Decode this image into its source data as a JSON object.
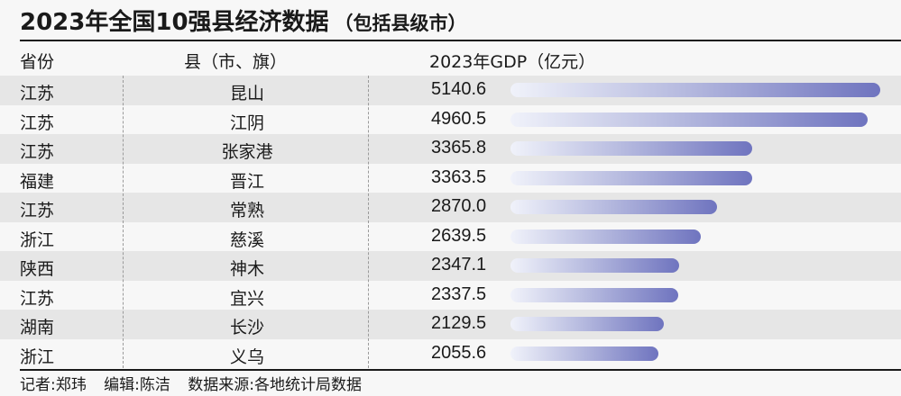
{
  "title": "2023年全国10强县经济数据",
  "subtitle": "（包括县级市）",
  "headers": {
    "province": "省份",
    "county": "县（市、旗）",
    "gdp": "2023年GDP（亿元）"
  },
  "footer": {
    "reporter": "记者:郑玮",
    "editor": "编辑:陈洁",
    "source": "数据来源:各地统计局数据"
  },
  "colors": {
    "bar_start": "#f0f2fa",
    "bar_end": "#6f74bf",
    "row_shade": "#e6e6e6"
  },
  "chart_data": {
    "type": "bar",
    "orientation": "horizontal",
    "title": "2023年全国10强县经济数据",
    "subtitle": "（包括县级市）",
    "xlabel": "2023年GDP（亿元）",
    "max_value": 5140.6,
    "rows": [
      {
        "province": "江苏",
        "county": "昆山",
        "value": 5140.6,
        "label": "5140.6"
      },
      {
        "province": "江苏",
        "county": "江阴",
        "value": 4960.5,
        "label": "4960.5"
      },
      {
        "province": "江苏",
        "county": "张家港",
        "value": 3365.8,
        "label": "3365.8"
      },
      {
        "province": "福建",
        "county": "晋江",
        "value": 3363.5,
        "label": "3363.5"
      },
      {
        "province": "江苏",
        "county": "常熟",
        "value": 2870.0,
        "label": "2870.0"
      },
      {
        "province": "浙江",
        "county": "慈溪",
        "value": 2639.5,
        "label": "2639.5"
      },
      {
        "province": "陕西",
        "county": "神木",
        "value": 2347.1,
        "label": "2347.1"
      },
      {
        "province": "江苏",
        "county": "宜兴",
        "value": 2337.5,
        "label": "2337.5"
      },
      {
        "province": "湖南",
        "county": "长沙",
        "value": 2129.5,
        "label": "2129.5"
      },
      {
        "province": "浙江",
        "county": "义乌",
        "value": 2055.6,
        "label": "2055.6"
      }
    ]
  }
}
